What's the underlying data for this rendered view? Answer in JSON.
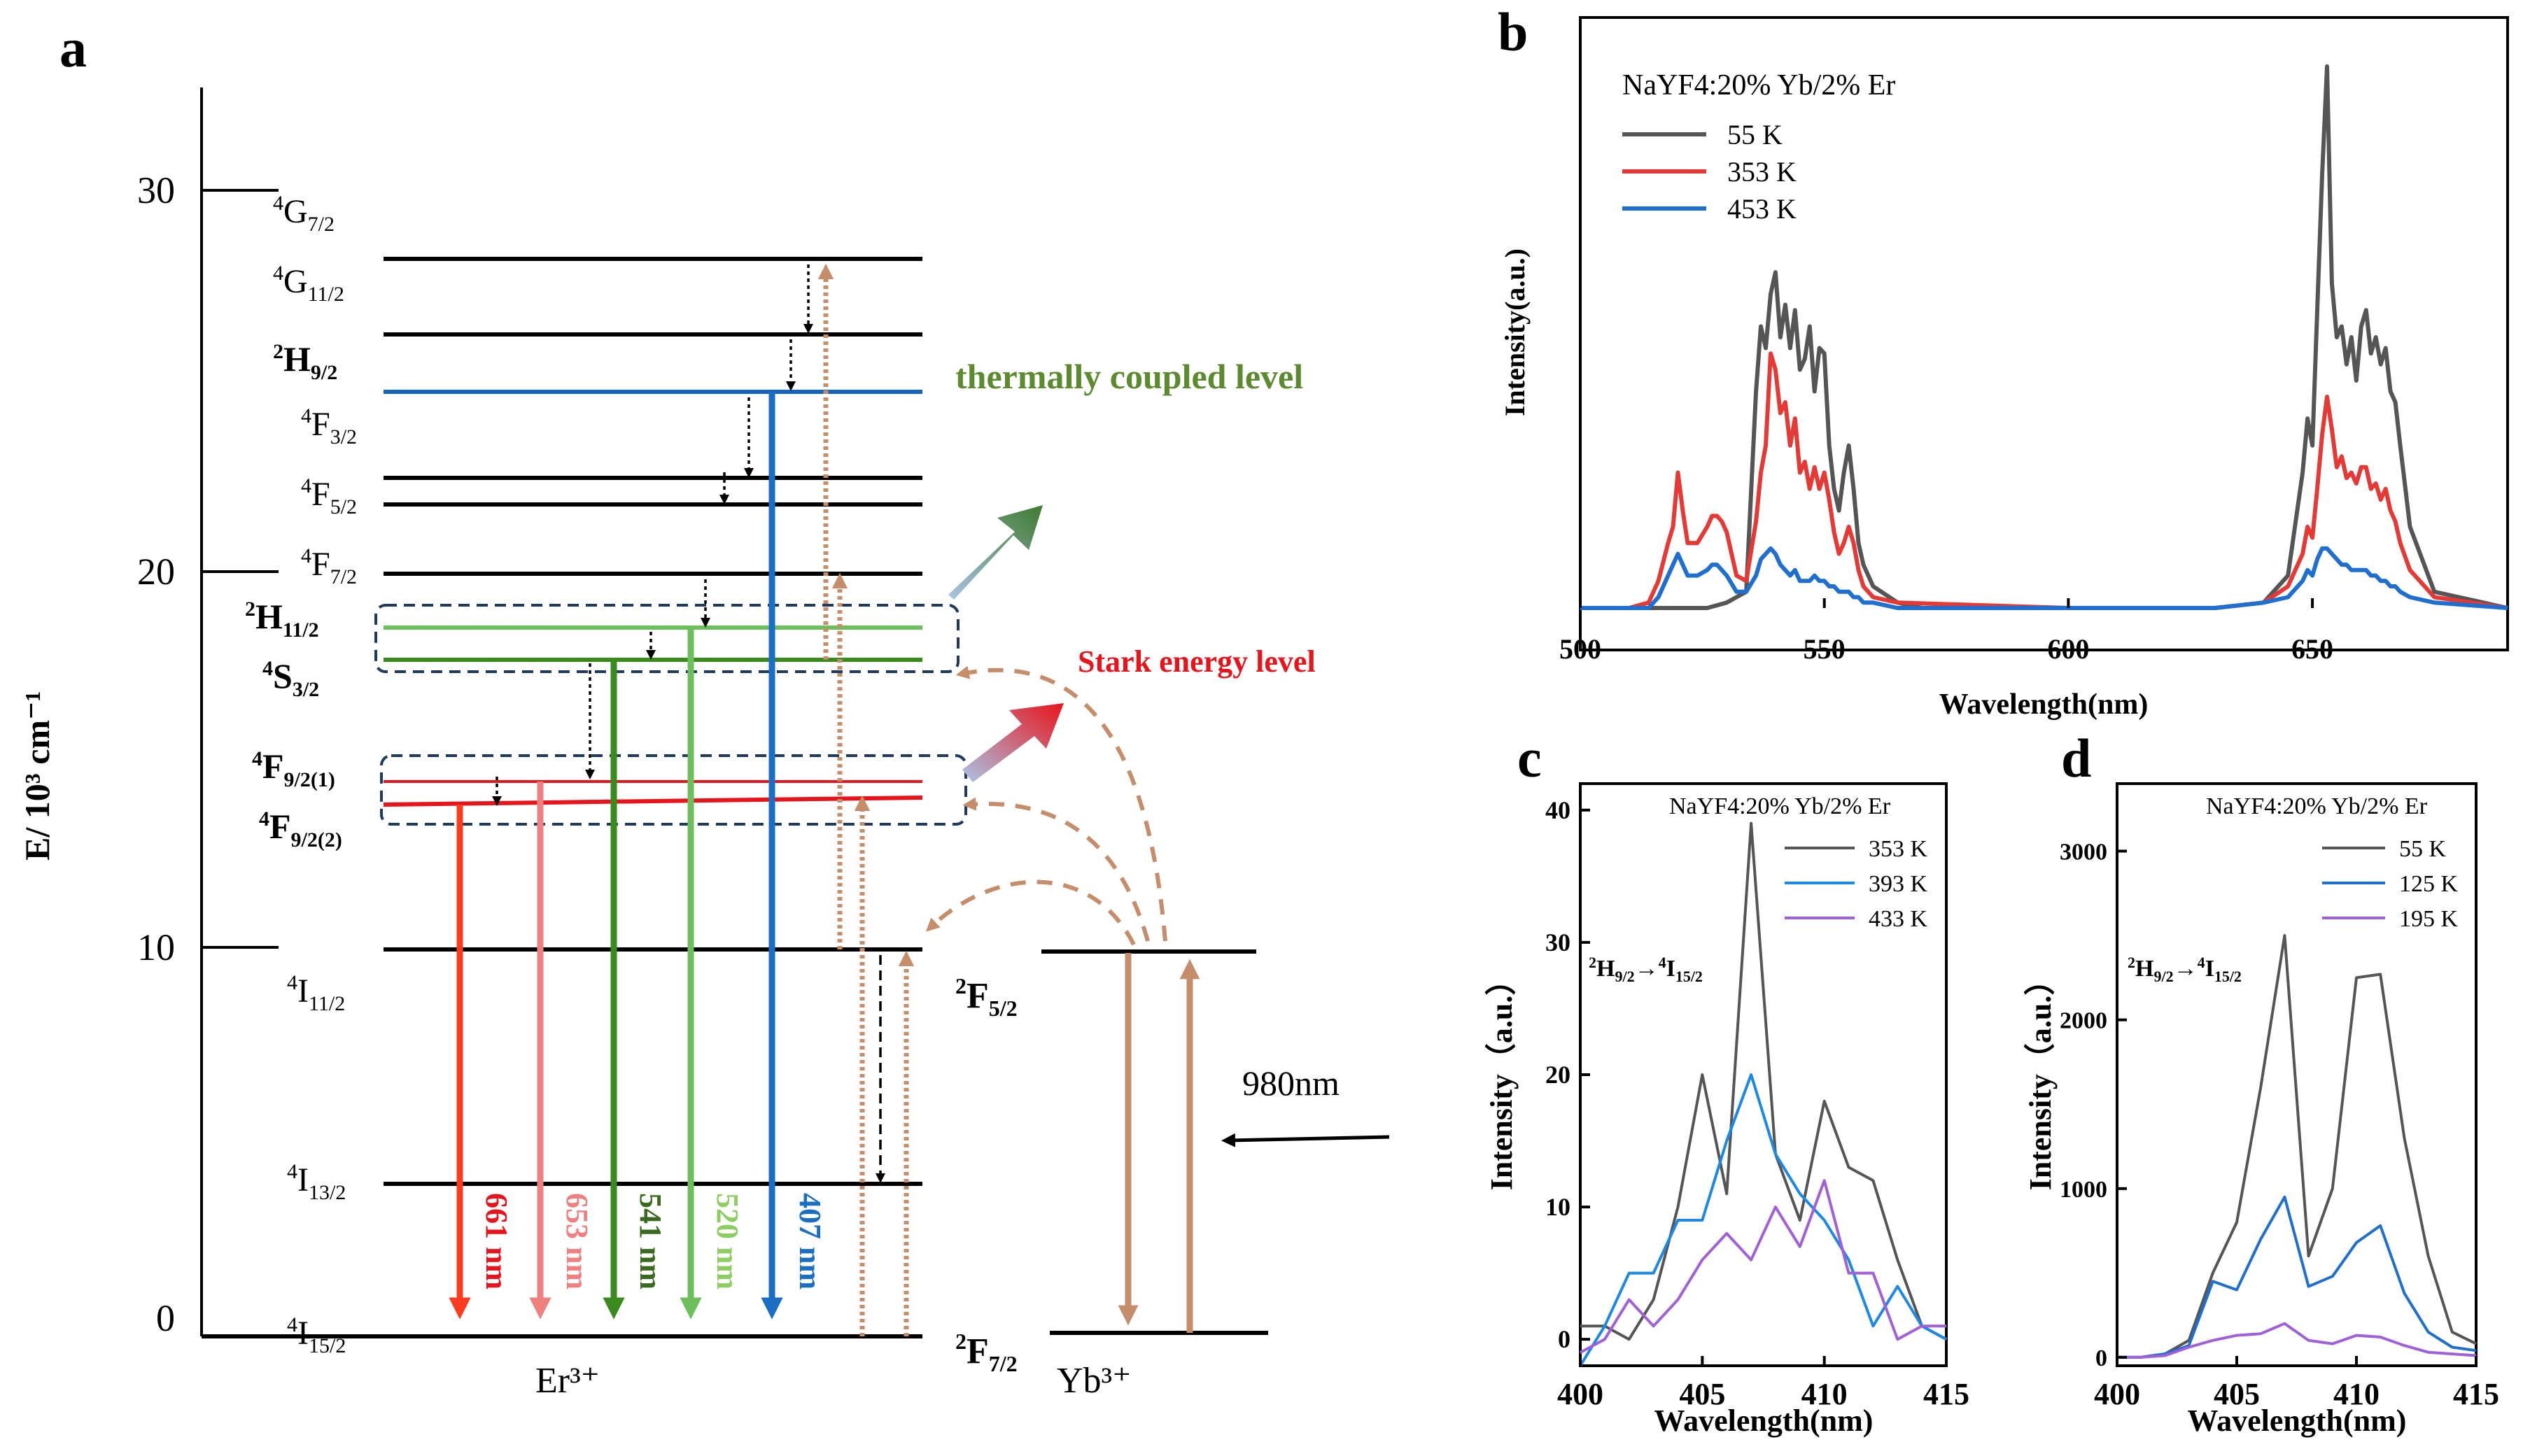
{
  "panel_labels": {
    "a": "a",
    "b": "b",
    "c": "c",
    "d": "d"
  },
  "colors": {
    "black": "#000000",
    "blue": "#1565c0",
    "green_thermal": "#5b8a2f",
    "red_stark": "#e8141b",
    "red661": "#ff3b1f",
    "pink653": "#f08080",
    "green541": "#3a8a1e",
    "green520": "#6cbf5a",
    "blue407": "#1a6fc4",
    "brown": "#c58d6a",
    "box_border": "#1f3a5a",
    "curve55": "#555555",
    "curve353": "#e53935",
    "curve453": "#1e6fd0",
    "c393": "#1e88e5",
    "c433": "#a060d8",
    "d125": "#1e6fd0",
    "d195": "#a060d8"
  },
  "energy_diagram": {
    "y_axis_label": "E/ 10³ cm⁻¹",
    "y_ticks": [
      "30",
      "20",
      "10",
      "0"
    ],
    "er_levels": [
      {
        "name": "4G",
        "sub": "7/2"
      },
      {
        "name": "4G",
        "sub": "11/2"
      },
      {
        "name": "2H",
        "sub": "9/2",
        "bold": true
      },
      {
        "name": "4F",
        "sub": "3/2"
      },
      {
        "name": "4F",
        "sub": "5/2"
      },
      {
        "name": "4F",
        "sub": "7/2"
      },
      {
        "name": "2H",
        "sub": "11/2",
        "bold": true
      },
      {
        "name": "4S",
        "sub": "3/2",
        "bold": true
      },
      {
        "name": "4F",
        "sub": "9/2(1)",
        "bold": true
      },
      {
        "name": "4F",
        "sub": "9/2(2)",
        "bold": true
      },
      {
        "name": "4I",
        "sub": "11/2"
      },
      {
        "name": "4I",
        "sub": "13/2"
      },
      {
        "name": "4I",
        "sub": "15/2"
      }
    ],
    "yb_levels": [
      {
        "name": "2F",
        "sub": "5/2",
        "bold": true
      },
      {
        "name": "2F",
        "sub": "7/2",
        "bold": true
      }
    ],
    "emissions": [
      "661 nm",
      "653 nm",
      "541 nm",
      "520 nm",
      "407 nm"
    ],
    "thermal_label": "thermally  coupled level",
    "stark_label": "Stark energy level",
    "excitation_label": "980nm",
    "er_ion": "Er³⁺",
    "yb_ion": "Yb³⁺"
  },
  "chart_data": [
    {
      "panel": "b",
      "type": "line",
      "title": "",
      "annotation": "NaYF4:20% Yb/2% Er",
      "xlabel": "Wavelength(nm)",
      "ylabel": "Intensity(a.u.)",
      "xlim": [
        500,
        690
      ],
      "ylim": [
        0,
        1
      ],
      "x_ticks": [
        500,
        550,
        600,
        650
      ],
      "series": [
        {
          "name": "55   K",
          "color": "#555555",
          "x": [
            500,
            510,
            515,
            518,
            522,
            526,
            530,
            534,
            536,
            537,
            538,
            539,
            540,
            541,
            542,
            543,
            544,
            545,
            546,
            547,
            548,
            549,
            550,
            551,
            552,
            553,
            554,
            555,
            556,
            557,
            558,
            560,
            565,
            570,
            600,
            630,
            640,
            645,
            648,
            649,
            650,
            651,
            652,
            653,
            654,
            655,
            656,
            657,
            658,
            659,
            660,
            661,
            662,
            663,
            664,
            665,
            666,
            667,
            668,
            670,
            675,
            690
          ],
          "y": [
            0,
            0,
            0,
            0,
            0,
            0,
            0.01,
            0.03,
            0.4,
            0.52,
            0.48,
            0.58,
            0.62,
            0.5,
            0.56,
            0.48,
            0.55,
            0.44,
            0.46,
            0.52,
            0.4,
            0.48,
            0.47,
            0.3,
            0.22,
            0.18,
            0.25,
            0.3,
            0.22,
            0.12,
            0.08,
            0.04,
            0.01,
            0,
            0,
            0,
            0.01,
            0.06,
            0.25,
            0.35,
            0.3,
            0.55,
            0.8,
            1.0,
            0.6,
            0.5,
            0.52,
            0.45,
            0.5,
            0.42,
            0.52,
            0.55,
            0.47,
            0.5,
            0.45,
            0.48,
            0.4,
            0.38,
            0.3,
            0.15,
            0.03,
            0
          ]
        },
        {
          "name": "353 K",
          "color": "#e53935",
          "x": [
            500,
            510,
            514,
            516,
            518,
            519,
            520,
            521,
            522,
            524,
            526,
            527,
            528,
            529,
            530,
            532,
            534,
            536,
            537,
            538,
            539,
            540,
            541,
            542,
            543,
            544,
            545,
            546,
            547,
            548,
            549,
            550,
            551,
            552,
            553,
            554,
            555,
            556,
            557,
            558,
            560,
            565,
            600,
            630,
            640,
            645,
            648,
            649,
            650,
            651,
            652,
            653,
            654,
            655,
            656,
            657,
            658,
            659,
            660,
            661,
            662,
            663,
            664,
            665,
            666,
            667,
            668,
            670,
            675,
            690
          ],
          "y": [
            0,
            0,
            0.01,
            0.05,
            0.12,
            0.15,
            0.25,
            0.18,
            0.12,
            0.12,
            0.15,
            0.17,
            0.17,
            0.16,
            0.14,
            0.06,
            0.05,
            0.16,
            0.25,
            0.3,
            0.47,
            0.44,
            0.36,
            0.38,
            0.3,
            0.35,
            0.25,
            0.27,
            0.22,
            0.26,
            0.22,
            0.25,
            0.2,
            0.14,
            0.1,
            0.12,
            0.15,
            0.12,
            0.07,
            0.04,
            0.02,
            0.01,
            0,
            0,
            0.01,
            0.04,
            0.1,
            0.15,
            0.13,
            0.22,
            0.32,
            0.39,
            0.33,
            0.26,
            0.28,
            0.24,
            0.25,
            0.23,
            0.26,
            0.26,
            0.22,
            0.23,
            0.2,
            0.22,
            0.18,
            0.16,
            0.12,
            0.07,
            0.02,
            0
          ]
        },
        {
          "name": "453 K",
          "color": "#1e6fd0",
          "x": [
            500,
            510,
            514,
            516,
            518,
            519,
            520,
            521,
            522,
            524,
            526,
            527,
            528,
            529,
            530,
            532,
            534,
            536,
            537,
            538,
            539,
            540,
            541,
            542,
            543,
            544,
            545,
            546,
            547,
            548,
            549,
            550,
            551,
            552,
            553,
            554,
            555,
            556,
            557,
            558,
            560,
            565,
            600,
            630,
            640,
            645,
            648,
            649,
            650,
            651,
            652,
            653,
            654,
            655,
            656,
            657,
            658,
            659,
            660,
            661,
            662,
            663,
            664,
            665,
            666,
            667,
            668,
            670,
            675,
            690
          ],
          "y": [
            0,
            0,
            0,
            0.02,
            0.06,
            0.08,
            0.1,
            0.08,
            0.06,
            0.06,
            0.07,
            0.08,
            0.08,
            0.07,
            0.06,
            0.03,
            0.03,
            0.06,
            0.09,
            0.1,
            0.11,
            0.1,
            0.08,
            0.07,
            0.06,
            0.07,
            0.05,
            0.05,
            0.05,
            0.06,
            0.05,
            0.05,
            0.04,
            0.04,
            0.03,
            0.03,
            0.03,
            0.02,
            0.02,
            0.01,
            0.01,
            0,
            0,
            0,
            0.01,
            0.02,
            0.05,
            0.07,
            0.06,
            0.09,
            0.11,
            0.11,
            0.1,
            0.09,
            0.08,
            0.08,
            0.07,
            0.07,
            0.07,
            0.07,
            0.06,
            0.06,
            0.05,
            0.05,
            0.04,
            0.04,
            0.03,
            0.02,
            0.01,
            0
          ]
        }
      ]
    },
    {
      "panel": "c",
      "type": "line",
      "title": "",
      "annotation": "NaYF4:20% Yb/2% Er",
      "transition_label": "2H9/2→4I15/2",
      "xlabel": "Wavelength(nm)",
      "ylabel": "Intensity（a.u.）",
      "xlim": [
        400,
        415
      ],
      "ylim": [
        -2,
        42
      ],
      "x_ticks": [
        400,
        405,
        410,
        415
      ],
      "y_ticks": [
        0,
        10,
        20,
        30,
        40
      ],
      "series": [
        {
          "name": "353 K",
          "color": "#555555",
          "x": [
            400,
            401,
            402,
            403,
            404,
            405,
            406,
            407,
            408,
            409,
            410,
            411,
            412,
            413,
            414,
            415
          ],
          "y": [
            1,
            1,
            0,
            3,
            10,
            20,
            11,
            39,
            14,
            9,
            18,
            13,
            12,
            6,
            1,
            0
          ]
        },
        {
          "name": "393 K",
          "color": "#1e88e5",
          "x": [
            400,
            401,
            402,
            403,
            404,
            405,
            406,
            407,
            408,
            409,
            410,
            411,
            412,
            413,
            414,
            415
          ],
          "y": [
            -2,
            1,
            5,
            5,
            9,
            9,
            15,
            20,
            14,
            11,
            9,
            6,
            1,
            4,
            1,
            0
          ]
        },
        {
          "name": "433 K",
          "color": "#a060d8",
          "x": [
            400,
            401,
            402,
            403,
            404,
            405,
            406,
            407,
            408,
            409,
            410,
            411,
            412,
            413,
            414,
            415
          ],
          "y": [
            -1,
            0,
            3,
            1,
            3,
            6,
            8,
            6,
            10,
            7,
            12,
            5,
            5,
            0,
            1,
            1
          ]
        }
      ]
    },
    {
      "panel": "d",
      "type": "line",
      "title": "",
      "annotation": "NaYF4:20% Yb/2% Er",
      "transition_label": "2H9/2→4I15/2",
      "xlabel": "Wavelength(nm)",
      "ylabel": "Intensity（a.u.）",
      "xlim": [
        400,
        415
      ],
      "ylim": [
        -50,
        3400
      ],
      "x_ticks": [
        400,
        405,
        410,
        415
      ],
      "y_ticks": [
        0,
        1000,
        2000,
        3000
      ],
      "series": [
        {
          "name": "55   K",
          "color": "#555555",
          "x": [
            400,
            401,
            402,
            403,
            404,
            405,
            406,
            407,
            408,
            409,
            410,
            411,
            412,
            413,
            414,
            415
          ],
          "y": [
            0,
            0,
            20,
            100,
            500,
            800,
            1600,
            2500,
            600,
            1000,
            2250,
            2270,
            1300,
            600,
            150,
            80
          ]
        },
        {
          "name": "125 K",
          "color": "#1e6fd0",
          "x": [
            400,
            401,
            402,
            403,
            404,
            405,
            406,
            407,
            408,
            409,
            410,
            411,
            412,
            413,
            414,
            415
          ],
          "y": [
            0,
            0,
            20,
            70,
            450,
            400,
            700,
            950,
            420,
            480,
            680,
            780,
            380,
            150,
            60,
            40
          ]
        },
        {
          "name": "195 K",
          "color": "#a060d8",
          "x": [
            400,
            401,
            402,
            403,
            404,
            405,
            406,
            407,
            408,
            409,
            410,
            411,
            412,
            413,
            414,
            415
          ],
          "y": [
            0,
            0,
            10,
            60,
            100,
            130,
            140,
            200,
            100,
            80,
            130,
            120,
            70,
            30,
            20,
            10
          ]
        }
      ]
    }
  ]
}
